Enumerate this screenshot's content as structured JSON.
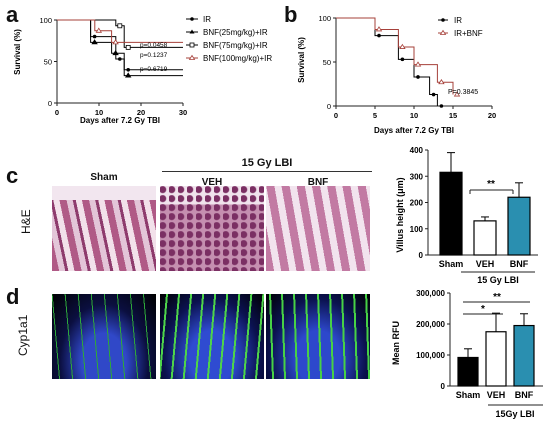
{
  "panels": {
    "a": "a",
    "b": "b",
    "c": "c",
    "d": "d"
  },
  "panel_a": {
    "ylabel": "Survival (%)",
    "xlabel": "Days after 7.2 Gy TBI",
    "yticks": [
      "0",
      "50",
      "100"
    ],
    "xticks": [
      "0",
      "10",
      "20",
      "30"
    ],
    "legend": [
      "IR",
      "BNF(25mg/kg)+IR",
      "BNF(75mg/kg)+IR",
      "BNF(100mg/kg)+IR"
    ],
    "pvalues": [
      "p=0.0458",
      "p=0.1237",
      "p=0.6719"
    ]
  },
  "panel_b": {
    "ylabel": "Survival (%)",
    "xlabel": "Days after 7.2 Gy TBI",
    "yticks": [
      "0",
      "50",
      "100"
    ],
    "xticks": [
      "0",
      "5",
      "10",
      "15",
      "20"
    ],
    "legend": [
      "IR",
      "IR+BNF"
    ],
    "pvalue": "P=0.3845"
  },
  "panel_c": {
    "header": "15 Gy LBI",
    "col_sham": "Sham",
    "col_veh": "VEH",
    "col_bnf": "BNF",
    "row_label": "H&E",
    "bar_ylabel": "Villus height (μm)",
    "bar_yticks": [
      "0",
      "100",
      "200",
      "300",
      "400"
    ],
    "bar_categories": [
      "Sham",
      "VEH",
      "BNF"
    ],
    "bar_group": "15 Gy LBI",
    "sig": "**"
  },
  "panel_d": {
    "row_label": "Cyp1a1",
    "col_sham": "Sham",
    "bar_ylabel": "Mean RFU",
    "bar_yticks": [
      "0",
      "100,000",
      "200,000",
      "300,000"
    ],
    "bar_categories": [
      "Sham",
      "VEH",
      "BNF"
    ],
    "bar_group": "15Gy LBI",
    "sig1": "*",
    "sig2": "**"
  },
  "colors": {
    "bnf": "#2a8fb0",
    "veh": "#ffffff",
    "sham": "#000000",
    "ifb": "#a6403a"
  },
  "chart_data": [
    {
      "type": "line",
      "title": "",
      "xlabel": "Days after 7.2 Gy TBI",
      "ylabel": "Survival (%)",
      "xlim": [
        0,
        30
      ],
      "ylim": [
        0,
        100
      ],
      "series": [
        {
          "name": "IR",
          "x": [
            0,
            8,
            8,
            14,
            14,
            16,
            16,
            30
          ],
          "y": [
            100,
            100,
            80,
            80,
            53,
            53,
            40,
            40
          ]
        },
        {
          "name": "BNF(25mg/kg)+IR",
          "x": [
            0,
            8,
            8,
            13,
            13,
            16,
            16,
            30
          ],
          "y": [
            100,
            100,
            73,
            73,
            60,
            60,
            33,
            33
          ]
        },
        {
          "name": "BNF(75mg/kg)+IR",
          "x": [
            0,
            14,
            14,
            16,
            16,
            30
          ],
          "y": [
            100,
            100,
            93,
            93,
            67,
            67
          ]
        },
        {
          "name": "BNF(100mg/kg)+IR",
          "x": [
            0,
            9,
            9,
            13,
            13,
            30
          ],
          "y": [
            100,
            100,
            87,
            87,
            73,
            73
          ]
        }
      ]
    },
    {
      "type": "line",
      "title": "",
      "xlabel": "Days after 7.2 Gy TBI",
      "ylabel": "Survival (%)",
      "xlim": [
        0,
        20
      ],
      "ylim": [
        0,
        100
      ],
      "series": [
        {
          "name": "IR",
          "x": [
            0,
            5,
            5,
            8,
            8,
            10,
            10,
            12,
            12,
            13,
            13
          ],
          "y": [
            100,
            100,
            80,
            80,
            53,
            53,
            33,
            33,
            13,
            13,
            0
          ]
        },
        {
          "name": "IR+BNF",
          "x": [
            0,
            5,
            5,
            8,
            8,
            10,
            10,
            13,
            13,
            15,
            15
          ],
          "y": [
            100,
            100,
            87,
            87,
            67,
            67,
            47,
            47,
            27,
            27,
            13
          ]
        }
      ]
    },
    {
      "type": "bar",
      "ylabel": "Villus height (μm)",
      "categories": [
        "Sham",
        "VEH",
        "BNF"
      ],
      "values": [
        315,
        130,
        220
      ],
      "errors": [
        75,
        15,
        55
      ],
      "ylim": [
        0,
        400
      ]
    },
    {
      "type": "bar",
      "ylabel": "Mean RFU",
      "categories": [
        "Sham",
        "VEH",
        "BNF"
      ],
      "values": [
        92000,
        175000,
        195000
      ],
      "errors": [
        28000,
        60000,
        38000
      ],
      "ylim": [
        0,
        300000
      ]
    }
  ]
}
